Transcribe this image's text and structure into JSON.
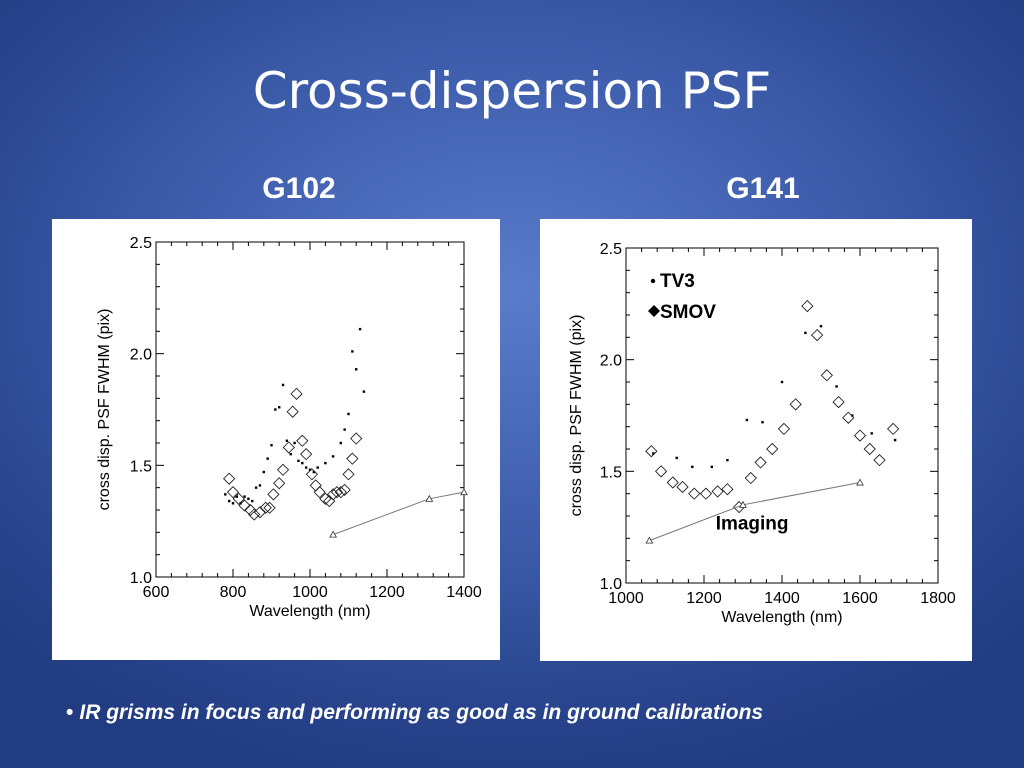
{
  "slide": {
    "title": "Cross-dispersion PSF",
    "panel_titles": [
      "G102",
      "G141"
    ],
    "bullet": "IR grisms in focus and performing as good as in ground calibrations"
  },
  "chart_data": [
    {
      "type": "scatter",
      "title": "",
      "xlabel": "Wavelength (nm)",
      "ylabel": "cross disp. PSF FWHM (pix)",
      "xlim": [
        600,
        1400
      ],
      "ylim": [
        1.0,
        2.5
      ],
      "xticks": [
        600,
        800,
        1000,
        1200,
        1400
      ],
      "yticks": [
        1.0,
        1.5,
        2.0,
        2.5
      ],
      "legend": [],
      "annotations": [],
      "series": [
        {
          "marker": "dot",
          "points": [
            [
              780,
              1.37
            ],
            [
              790,
              1.34
            ],
            [
              800,
              1.33
            ],
            [
              810,
              1.36
            ],
            [
              820,
              1.33
            ],
            [
              830,
              1.36
            ],
            [
              840,
              1.35
            ],
            [
              850,
              1.34
            ],
            [
              860,
              1.4
            ],
            [
              870,
              1.41
            ],
            [
              880,
              1.47
            ],
            [
              890,
              1.53
            ],
            [
              900,
              1.59
            ],
            [
              910,
              1.75
            ],
            [
              920,
              1.76
            ],
            [
              930,
              1.86
            ],
            [
              940,
              1.61
            ],
            [
              950,
              1.55
            ],
            [
              960,
              1.6
            ],
            [
              970,
              1.52
            ],
            [
              980,
              1.51
            ],
            [
              990,
              1.49
            ],
            [
              1000,
              1.48
            ],
            [
              1010,
              1.47
            ],
            [
              1020,
              1.49
            ],
            [
              1040,
              1.51
            ],
            [
              1060,
              1.54
            ],
            [
              1080,
              1.6
            ],
            [
              1090,
              1.66
            ],
            [
              1100,
              1.73
            ],
            [
              1110,
              2.01
            ],
            [
              1120,
              1.93
            ],
            [
              1130,
              2.11
            ],
            [
              1140,
              1.83
            ]
          ]
        },
        {
          "marker": "diamond",
          "points": [
            [
              790,
              1.44
            ],
            [
              800,
              1.38
            ],
            [
              815,
              1.35
            ],
            [
              830,
              1.32
            ],
            [
              845,
              1.3
            ],
            [
              855,
              1.28
            ],
            [
              870,
              1.29
            ],
            [
              885,
              1.31
            ],
            [
              895,
              1.31
            ],
            [
              905,
              1.37
            ],
            [
              920,
              1.42
            ],
            [
              930,
              1.48
            ],
            [
              945,
              1.58
            ],
            [
              955,
              1.74
            ],
            [
              965,
              1.82
            ],
            [
              980,
              1.61
            ],
            [
              990,
              1.55
            ],
            [
              1005,
              1.46
            ],
            [
              1015,
              1.41
            ],
            [
              1025,
              1.38
            ],
            [
              1040,
              1.35
            ],
            [
              1050,
              1.34
            ],
            [
              1060,
              1.37
            ],
            [
              1070,
              1.38
            ],
            [
              1080,
              1.38
            ],
            [
              1090,
              1.39
            ],
            [
              1100,
              1.46
            ],
            [
              1110,
              1.53
            ],
            [
              1120,
              1.62
            ]
          ]
        },
        {
          "marker": "triangle",
          "line": true,
          "points": [
            [
              1060,
              1.19
            ],
            [
              1310,
              1.35
            ],
            [
              1400,
              1.38
            ]
          ]
        }
      ]
    },
    {
      "type": "scatter",
      "title": "",
      "xlabel": "Wavelength (nm)",
      "ylabel": "cross disp. PSF FWHM (pix)",
      "xlim": [
        1000,
        1800
      ],
      "ylim": [
        1.0,
        2.5
      ],
      "xticks": [
        1000,
        1200,
        1400,
        1600,
        1800
      ],
      "yticks": [
        1.0,
        1.5,
        2.0,
        2.5
      ],
      "legend": [
        "TV3",
        "SMOV"
      ],
      "annotations": [
        "Imaging"
      ],
      "series": [
        {
          "name": "TV3",
          "marker": "dot",
          "points": [
            [
              1070,
              1.58
            ],
            [
              1130,
              1.56
            ],
            [
              1170,
              1.52
            ],
            [
              1220,
              1.52
            ],
            [
              1260,
              1.55
            ],
            [
              1310,
              1.73
            ],
            [
              1350,
              1.72
            ],
            [
              1400,
              1.9
            ],
            [
              1460,
              2.12
            ],
            [
              1500,
              2.15
            ],
            [
              1540,
              1.88
            ],
            [
              1580,
              1.75
            ],
            [
              1630,
              1.67
            ],
            [
              1690,
              1.64
            ]
          ]
        },
        {
          "name": "SMOV",
          "marker": "diamond",
          "points": [
            [
              1065,
              1.59
            ],
            [
              1090,
              1.5
            ],
            [
              1120,
              1.45
            ],
            [
              1145,
              1.43
            ],
            [
              1175,
              1.4
            ],
            [
              1205,
              1.4
            ],
            [
              1235,
              1.41
            ],
            [
              1260,
              1.42
            ],
            [
              1290,
              1.34
            ],
            [
              1320,
              1.47
            ],
            [
              1345,
              1.54
            ],
            [
              1375,
              1.6
            ],
            [
              1405,
              1.69
            ],
            [
              1435,
              1.8
            ],
            [
              1465,
              2.24
            ],
            [
              1490,
              2.11
            ],
            [
              1515,
              1.93
            ],
            [
              1545,
              1.81
            ],
            [
              1570,
              1.74
            ],
            [
              1600,
              1.66
            ],
            [
              1625,
              1.6
            ],
            [
              1650,
              1.55
            ],
            [
              1685,
              1.69
            ]
          ]
        },
        {
          "marker": "triangle",
          "line": true,
          "points": [
            [
              1060,
              1.19
            ],
            [
              1300,
              1.35
            ],
            [
              1600,
              1.45
            ]
          ]
        }
      ]
    }
  ]
}
